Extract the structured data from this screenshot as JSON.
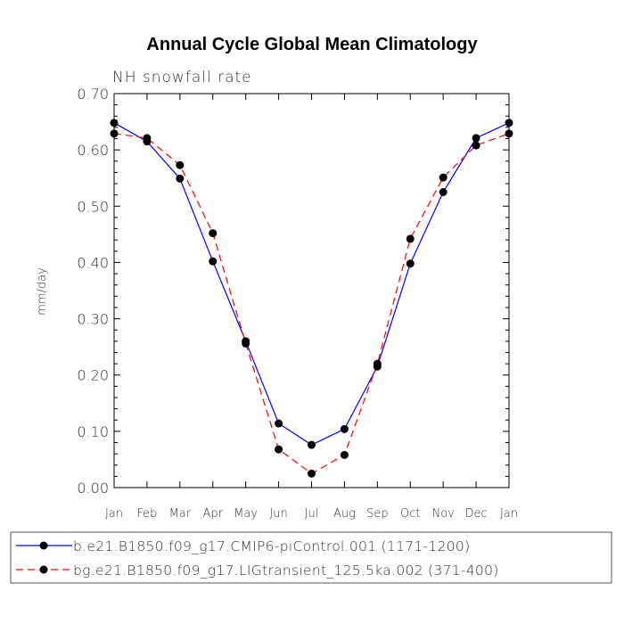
{
  "chart_data": {
    "type": "line",
    "title": "Annual Cycle Global Mean Climatology",
    "subtitle": "NH snowfall rate",
    "xlabel": "",
    "ylabel": "mm/day",
    "categories": [
      "Jan",
      "Feb",
      "Mar",
      "Apr",
      "May",
      "Jun",
      "Jul",
      "Aug",
      "Sep",
      "Oct",
      "Nov",
      "Dec",
      "Jan"
    ],
    "ylim": [
      0.0,
      0.7
    ],
    "yticks": [
      "0.00",
      "0.10",
      "0.20",
      "0.30",
      "0.40",
      "0.50",
      "0.60",
      "0.70"
    ],
    "grid": false,
    "legend_position": "bottom",
    "series": [
      {
        "name": "b.e21.B1850.f09_g17.CMIP6-piControl.001 (1171-1200)",
        "color": "#0000ff",
        "dash": "solid",
        "values": [
          0.648,
          0.615,
          0.549,
          0.402,
          0.26,
          0.114,
          0.076,
          0.104,
          0.215,
          0.398,
          0.525,
          0.621,
          0.648
        ]
      },
      {
        "name": "bg.e21.B1850.f09_g17.LIGtransient_125.5ka.002 (371-400)",
        "color": "#ff0000",
        "dash": "dashed",
        "values": [
          0.629,
          0.621,
          0.573,
          0.452,
          0.256,
          0.068,
          0.025,
          0.058,
          0.22,
          0.442,
          0.551,
          0.608,
          0.629
        ]
      }
    ]
  }
}
